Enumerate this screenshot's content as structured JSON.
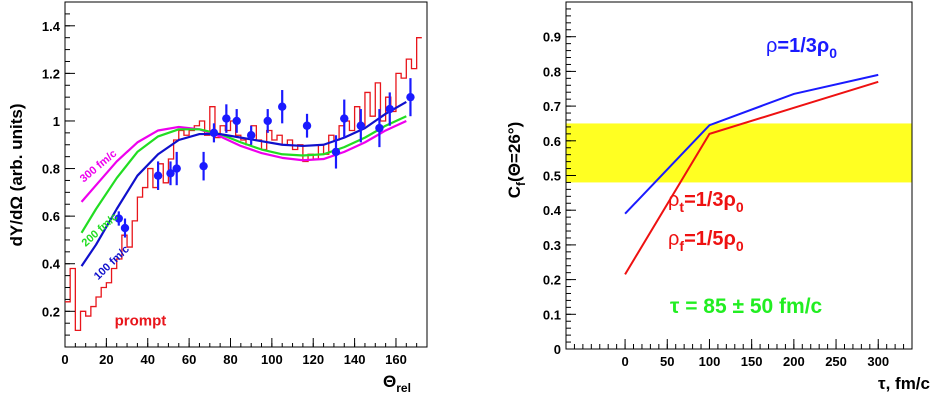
{
  "chart_data": [
    {
      "type": "line",
      "ylabel": "dY/dΩ (arb. units)",
      "xlabel": "Θrel",
      "xlabel_main": "Θ",
      "xlabel_sub": "rel",
      "xlim": [
        0,
        175
      ],
      "ylim": [
        0.05,
        1.5
      ],
      "xticks": [
        0,
        20,
        40,
        60,
        80,
        100,
        120,
        140,
        160
      ],
      "xticklabels": [
        "0",
        "20",
        "40",
        "60",
        "80",
        "100",
        "120",
        "140",
        "160"
      ],
      "yticks": [
        0.2,
        0.4,
        0.6,
        0.8,
        1.0,
        1.2,
        1.4
      ],
      "yticklabels": [
        "0.2",
        "0.4",
        "0.6",
        "0.8",
        "1",
        "1.2",
        "1.4"
      ],
      "histogram": {
        "name": "prompt",
        "color": "#e8151b",
        "edges": [
          0,
          2.5,
          5,
          7.5,
          10,
          12.5,
          15,
          17.5,
          20,
          22.5,
          25,
          27.5,
          30,
          32.5,
          35,
          37.5,
          40,
          42.5,
          45,
          47.5,
          50,
          52.5,
          55,
          57.5,
          60,
          62.5,
          65,
          67.5,
          70,
          72.5,
          75,
          77.5,
          80,
          82.5,
          85,
          87.5,
          90,
          92.5,
          95,
          97.5,
          100,
          102.5,
          105,
          107.5,
          110,
          112.5,
          115,
          117.5,
          120,
          122.5,
          125,
          127.5,
          130,
          132.5,
          135,
          137.5,
          140,
          142.5,
          145,
          147.5,
          150,
          152.5,
          155,
          157.5,
          160,
          162.5,
          165,
          167.5,
          170,
          172.5
        ],
        "values": [
          0.24,
          0.38,
          0.12,
          0.2,
          0.18,
          0.22,
          0.26,
          0.3,
          0.32,
          0.38,
          0.42,
          0.52,
          0.47,
          0.58,
          0.68,
          0.72,
          0.8,
          0.72,
          0.82,
          0.74,
          0.84,
          0.92,
          0.96,
          0.94,
          0.96,
          0.98,
          1.0,
          0.94,
          1.06,
          0.93,
          0.98,
          0.96,
          1.0,
          0.94,
          0.92,
          0.9,
          0.98,
          0.92,
          0.88,
          0.96,
          0.92,
          0.94,
          0.9,
          0.92,
          0.88,
          0.9,
          0.83,
          0.86,
          0.84,
          0.9,
          0.86,
          0.94,
          0.92,
          0.98,
          1.0,
          0.96,
          1.06,
          0.98,
          1.12,
          1.02,
          1.16,
          1.0,
          1.1,
          1.04,
          1.2,
          1.18,
          1.26,
          1.22,
          1.35
        ]
      },
      "points": {
        "x": [
          26,
          29,
          45,
          51,
          54,
          67,
          72,
          78,
          83,
          90,
          98,
          105,
          117,
          131,
          135,
          143,
          152,
          157,
          167
        ],
        "y": [
          0.59,
          0.55,
          0.77,
          0.78,
          0.8,
          0.81,
          0.95,
          1.01,
          1.0,
          0.94,
          1.0,
          1.06,
          0.98,
          0.87,
          1.01,
          0.98,
          0.97,
          1.05,
          1.1
        ],
        "err": [
          0.03,
          0.04,
          0.06,
          0.05,
          0.07,
          0.06,
          0.04,
          0.06,
          0.05,
          0.04,
          0.05,
          0.07,
          0.05,
          0.07,
          0.08,
          0.07,
          0.08,
          0.07,
          0.08
        ],
        "color": "#1a1aff"
      },
      "series": [
        {
          "name": "300 fm/c",
          "color": "#ee00ee",
          "x": [
            8,
            15,
            25,
            35,
            45,
            55,
            65,
            75,
            85,
            95,
            105,
            115,
            125,
            135,
            145,
            155,
            165
          ],
          "y": [
            0.66,
            0.73,
            0.83,
            0.91,
            0.96,
            0.975,
            0.965,
            0.935,
            0.895,
            0.865,
            0.845,
            0.835,
            0.84,
            0.87,
            0.91,
            0.96,
            1.0
          ]
        },
        {
          "name": "200 fm/c",
          "color": "#22dd22",
          "x": [
            8,
            15,
            25,
            35,
            45,
            55,
            65,
            75,
            85,
            95,
            105,
            115,
            125,
            135,
            145,
            155,
            165
          ],
          "y": [
            0.53,
            0.63,
            0.76,
            0.87,
            0.935,
            0.965,
            0.965,
            0.945,
            0.91,
            0.88,
            0.86,
            0.855,
            0.86,
            0.89,
            0.93,
            0.98,
            1.02
          ]
        },
        {
          "name": "100 fm/c",
          "color": "#1010cc",
          "x": [
            8,
            15,
            25,
            35,
            45,
            55,
            65,
            75,
            85,
            95,
            105,
            115,
            125,
            135,
            145,
            155,
            165
          ],
          "y": [
            0.39,
            0.48,
            0.63,
            0.77,
            0.86,
            0.92,
            0.945,
            0.945,
            0.93,
            0.915,
            0.9,
            0.895,
            0.9,
            0.93,
            0.97,
            1.03,
            1.08
          ]
        }
      ],
      "annotations": [
        {
          "text": "300 fm/c",
          "color": "#ee00ee",
          "x": 9,
          "y": 0.74,
          "rotate": -40
        },
        {
          "text": "200 fm/c",
          "color": "#22dd22",
          "x": 10,
          "y": 0.47,
          "rotate": -42
        },
        {
          "text": "100 fm/c",
          "color": "#1010cc",
          "x": 16,
          "y": 0.33,
          "rotate": -44
        },
        {
          "text": "prompt",
          "color": "#e8151b",
          "x": 24,
          "y": 0.14,
          "rotate": 0
        }
      ]
    },
    {
      "type": "line",
      "ylabel": "Cf(Θ=26°)",
      "ylabel_parts": {
        "main": "C",
        "sub": "f",
        "rest": "(Θ=26°)"
      },
      "xlabel": "τ, fm/c",
      "xlim": [
        -70,
        340
      ],
      "ylim": [
        0,
        1.0
      ],
      "xticks": [
        0,
        50,
        100,
        150,
        200,
        250,
        300
      ],
      "xticklabels": [
        "0",
        "50",
        "100",
        "150",
        "200",
        "250",
        "300"
      ],
      "yticks": [
        0,
        0.1,
        0.2,
        0.3,
        0.4,
        0.5,
        0.6,
        0.7,
        0.8,
        0.9
      ],
      "yticklabels": [
        "0",
        "0.1",
        "0.2",
        "0.3",
        "0.4",
        "0.5",
        "0.6",
        "0.7",
        "0.8",
        "0.9"
      ],
      "band": {
        "y0": 0.48,
        "y1": 0.65,
        "color": "#ffff22"
      },
      "series": [
        {
          "name": "ρ=1/3ρ0",
          "color": "#1a1aff",
          "x": [
            0,
            100,
            200,
            300
          ],
          "y": [
            0.39,
            0.645,
            0.735,
            0.79
          ]
        },
        {
          "name": "ρt=1/3ρ0, ρf=1/5ρ0",
          "color": "#ee1111",
          "x": [
            0,
            100,
            200,
            300
          ],
          "y": [
            0.215,
            0.62,
            0.695,
            0.77
          ]
        }
      ],
      "legend_blue": {
        "rho": "ρ",
        "mid": "=1/3ρ",
        "sub": "0"
      },
      "legend_red_1": {
        "rho": "ρ",
        "s1": "t",
        "mid": "=1/3ρ",
        "sub": "0"
      },
      "legend_red_2": {
        "rho": "ρ",
        "s1": "f",
        "mid": "=1/5ρ",
        "sub": "0"
      },
      "tau_text": "τ = 85 ± 50 fm/c",
      "tau_color": "#22ee22"
    }
  ]
}
